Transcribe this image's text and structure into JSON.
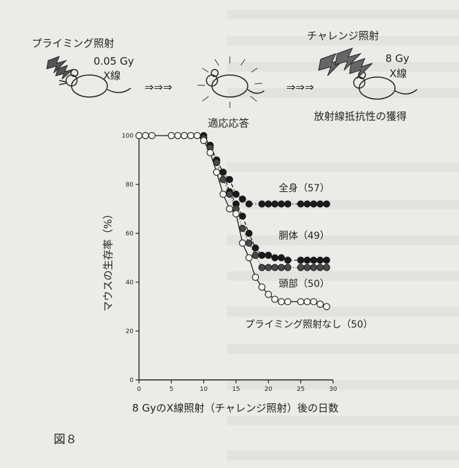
{
  "figure_label": "図８",
  "header": {
    "priming_label": "プライミング照射",
    "priming_dose": "0.05 Gy",
    "priming_xray": "X線",
    "arrow_left": "⇒⇒⇒",
    "adaptive_response": "適応応答",
    "arrow_right": "⇒⇒⇒",
    "challenge_label": "チャレンジ照射",
    "challenge_dose": "8 Gy",
    "challenge_xray": "X線",
    "acquired_resistance": "放射線抵抗性の獲得"
  },
  "chart_data": {
    "type": "line",
    "xlabel": "8 GyのX線照射（チャレンジ照射）後の日数",
    "ylabel": "マウスの生存率（%）",
    "xlim": [
      0,
      30
    ],
    "ylim": [
      0,
      100
    ],
    "xticks": [
      0,
      5,
      10,
      15,
      20,
      25,
      30
    ],
    "yticks": [
      0,
      20,
      40,
      60,
      80,
      100
    ],
    "series": [
      {
        "name": "全身（57）",
        "marker": "filled",
        "line": "dashdot",
        "color": "#1a1a1a",
        "points": [
          [
            10,
            100
          ],
          [
            11,
            96
          ],
          [
            12,
            90
          ],
          [
            13,
            85
          ],
          [
            14,
            82
          ],
          [
            15,
            76
          ],
          [
            16,
            74
          ],
          [
            17,
            72
          ],
          [
            19,
            72
          ],
          [
            20,
            72
          ],
          [
            21,
            72
          ],
          [
            22,
            72
          ],
          [
            23,
            72
          ],
          [
            25,
            72
          ],
          [
            26,
            72
          ],
          [
            27,
            72
          ],
          [
            28,
            72
          ],
          [
            29,
            72
          ]
        ]
      },
      {
        "name": "胴体（49）",
        "marker": "filled",
        "line": "dashed",
        "color": "#1a1a1a",
        "points": [
          [
            10,
            99
          ],
          [
            11,
            96
          ],
          [
            12,
            90
          ],
          [
            13,
            85
          ],
          [
            14,
            77
          ],
          [
            15,
            72
          ],
          [
            16,
            67
          ],
          [
            17,
            60
          ],
          [
            18,
            54
          ],
          [
            19,
            51
          ],
          [
            20,
            51
          ],
          [
            21,
            50
          ],
          [
            22,
            50
          ],
          [
            23,
            49
          ],
          [
            25,
            49
          ],
          [
            26,
            49
          ],
          [
            27,
            49
          ],
          [
            28,
            49
          ],
          [
            29,
            49
          ]
        ]
      },
      {
        "name": "頭部（50）",
        "marker": "filled",
        "line": "dotted",
        "color": "#4a4a4a",
        "points": [
          [
            10,
            99
          ],
          [
            11,
            95
          ],
          [
            12,
            89
          ],
          [
            13,
            82
          ],
          [
            14,
            76
          ],
          [
            15,
            70
          ],
          [
            16,
            62
          ],
          [
            17,
            56
          ],
          [
            18,
            51
          ],
          [
            19,
            46
          ],
          [
            20,
            46
          ],
          [
            21,
            46
          ],
          [
            22,
            46
          ],
          [
            23,
            46
          ],
          [
            25,
            46
          ],
          [
            26,
            46
          ],
          [
            27,
            46
          ],
          [
            28,
            46
          ],
          [
            29,
            46
          ]
        ]
      },
      {
        "name": "プライミング照射なし（50）",
        "marker": "open",
        "line": "solid",
        "color": "#1a1a1a",
        "points": [
          [
            0,
            100
          ],
          [
            1,
            100
          ],
          [
            2,
            100
          ],
          [
            5,
            100
          ],
          [
            6,
            100
          ],
          [
            7,
            100
          ],
          [
            8,
            100
          ],
          [
            9,
            100
          ],
          [
            10,
            98
          ],
          [
            11,
            93
          ],
          [
            12,
            85
          ],
          [
            13,
            76
          ],
          [
            14,
            70
          ],
          [
            15,
            68
          ],
          [
            16,
            56
          ],
          [
            17,
            50
          ],
          [
            18,
            42
          ],
          [
            19,
            38
          ],
          [
            20,
            35
          ],
          [
            21,
            33
          ],
          [
            22,
            32
          ],
          [
            23,
            32
          ],
          [
            25,
            32
          ],
          [
            26,
            32
          ],
          [
            27,
            32
          ],
          [
            28,
            31
          ],
          [
            29,
            30
          ]
        ]
      }
    ]
  }
}
